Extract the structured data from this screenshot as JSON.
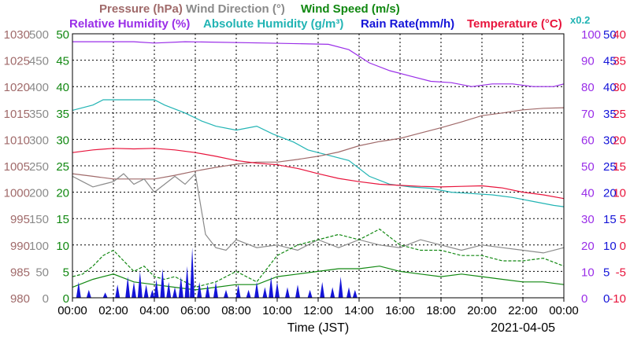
{
  "chart_data": {
    "type": "line",
    "date_label": "2021-04-05",
    "xlabel": "Time (JST)",
    "x_ticks": [
      "00:00",
      "02:00",
      "04:00",
      "06:00",
      "08:00",
      "10:00",
      "12:00",
      "14:00",
      "16:00",
      "18:00",
      "20:00",
      "22:00",
      "00:00"
    ],
    "x_range_hours": [
      0,
      24
    ],
    "grid": true,
    "header": [
      {
        "text": "Pressure (hPa)",
        "color": "#a06a6a"
      },
      {
        "text": "Wind Direction (°)",
        "color": "#8a8a8a"
      },
      {
        "text": "Wind Speed (m/s)",
        "color": "#118811"
      },
      {
        "text": "Relative Humidity (%)",
        "color": "#9a2ee8"
      },
      {
        "text": "Absolute Humidity (g/m³)",
        "color": "#22b4b4"
      },
      {
        "text": "Rain Rate(mm/h)",
        "color": "#1414d8"
      },
      {
        "text": "Temperature (°C)",
        "color": "#e8143c"
      },
      {
        "text": "x0.2",
        "color": "#22b4b4"
      }
    ],
    "axes": {
      "pressure": {
        "color": "#a06a6a",
        "range": [
          980,
          1030
        ],
        "ticks": [
          "1030",
          "1025",
          "1020",
          "1015",
          "1010",
          "1005",
          "1000",
          "995",
          "990",
          "985",
          "980"
        ]
      },
      "wind_direction": {
        "color": "#8a8a8a",
        "range": [
          0,
          500
        ],
        "ticks": [
          "500",
          "450",
          "400",
          "350",
          "300",
          "250",
          "200",
          "150",
          "100",
          "50",
          "0"
        ]
      },
      "wind_speed": {
        "color": "#118811",
        "range": [
          0,
          50
        ],
        "ticks": [
          "50",
          "45",
          "40",
          "35",
          "30",
          "25",
          "20",
          "15",
          "10",
          "5",
          "0"
        ]
      },
      "humidity": {
        "color": "#9a2ee8",
        "range": [
          0,
          100
        ],
        "ticks": [
          "100",
          "90",
          "80",
          "70",
          "60",
          "50",
          "40",
          "30",
          "20",
          "10",
          "0"
        ]
      },
      "rain_rate": {
        "color": "#1414d8",
        "range": [
          0,
          50
        ],
        "ticks": [
          "50",
          "45",
          "40",
          "35",
          "30",
          "25",
          "20",
          "15",
          "10",
          "5",
          "0"
        ]
      },
      "temperature": {
        "color": "#e8143c",
        "range": [
          -10,
          40
        ],
        "ticks": [
          "40",
          "35",
          "30",
          "25",
          "20",
          "15",
          "10",
          "5",
          "0",
          "-5",
          "-10"
        ]
      }
    },
    "series": [
      {
        "key": "relative_humidity",
        "color": "#9a2ee8",
        "axis": "humidity",
        "points": [
          [
            0,
            97
          ],
          [
            3,
            97
          ],
          [
            4,
            96.5
          ],
          [
            5.5,
            97
          ],
          [
            9.5,
            96.5
          ],
          [
            12.5,
            96
          ],
          [
            13.5,
            94
          ],
          [
            14.5,
            89
          ],
          [
            15.5,
            86
          ],
          [
            16.5,
            84
          ],
          [
            17.5,
            82
          ],
          [
            18.5,
            81.5
          ],
          [
            19.5,
            80
          ],
          [
            20.5,
            81
          ],
          [
            21.5,
            81
          ],
          [
            22.5,
            80
          ],
          [
            23.5,
            80
          ],
          [
            24,
            81
          ]
        ]
      },
      {
        "key": "absolute_humidity",
        "color": "#22b4b4",
        "axis": "humidity",
        "points": [
          [
            0,
            71
          ],
          [
            1,
            73
          ],
          [
            1.5,
            75
          ],
          [
            3,
            75
          ],
          [
            4,
            75
          ],
          [
            4.5,
            73
          ],
          [
            5.5,
            70
          ],
          [
            6.3,
            67
          ],
          [
            7,
            65
          ],
          [
            8,
            63.5
          ],
          [
            9,
            65
          ],
          [
            9.8,
            62
          ],
          [
            10.8,
            59
          ],
          [
            11.5,
            56
          ],
          [
            12.5,
            54
          ],
          [
            13.5,
            52
          ],
          [
            14.5,
            46
          ],
          [
            15.5,
            43
          ],
          [
            16.5,
            42
          ],
          [
            17.5,
            41.5
          ],
          [
            18.5,
            40
          ],
          [
            19.5,
            39.5
          ],
          [
            20.5,
            39
          ],
          [
            21.5,
            38
          ],
          [
            22.5,
            36.5
          ],
          [
            23.5,
            35
          ],
          [
            24,
            34.5
          ]
        ]
      },
      {
        "key": "pressure",
        "color": "#a06a6a",
        "axis": "pressure",
        "points": [
          [
            0,
            1003.5
          ],
          [
            1,
            1003
          ],
          [
            2,
            1002.5
          ],
          [
            3,
            1002.5
          ],
          [
            4,
            1002.5
          ],
          [
            5,
            1003.2
          ],
          [
            6,
            1004
          ],
          [
            7,
            1004.7
          ],
          [
            8,
            1005.3
          ],
          [
            9,
            1005.7
          ],
          [
            10,
            1005.7
          ],
          [
            11,
            1006.2
          ],
          [
            12,
            1006.8
          ],
          [
            13,
            1007.6
          ],
          [
            14,
            1008.8
          ],
          [
            15,
            1009.6
          ],
          [
            16,
            1010.2
          ],
          [
            17,
            1011.2
          ],
          [
            18,
            1012.2
          ],
          [
            19,
            1013.3
          ],
          [
            20,
            1014.5
          ],
          [
            21,
            1015
          ],
          [
            22,
            1015.6
          ],
          [
            23,
            1015.9
          ],
          [
            24,
            1016
          ]
        ]
      },
      {
        "key": "temperature",
        "color": "#e8143c",
        "axis": "temperature",
        "points": [
          [
            0,
            17.5
          ],
          [
            1,
            18
          ],
          [
            2,
            18.3
          ],
          [
            3,
            18.2
          ],
          [
            4,
            18.3
          ],
          [
            5,
            18
          ],
          [
            6,
            17.5
          ],
          [
            7,
            16.8
          ],
          [
            8,
            16
          ],
          [
            9,
            15.5
          ],
          [
            10,
            15.2
          ],
          [
            11,
            14.5
          ],
          [
            12,
            13.5
          ],
          [
            13,
            12.6
          ],
          [
            14,
            12
          ],
          [
            15,
            11.5
          ],
          [
            16,
            11.3
          ],
          [
            17,
            11.1
          ],
          [
            18,
            11
          ],
          [
            19,
            11.1
          ],
          [
            20,
            11.2
          ],
          [
            21,
            10.8
          ],
          [
            22,
            10
          ],
          [
            23,
            9.5
          ],
          [
            24,
            8.8
          ]
        ]
      },
      {
        "key": "wind_direction",
        "color": "#8a8a8a",
        "axis": "wind_direction",
        "points": [
          [
            0,
            230
          ],
          [
            0.5,
            220
          ],
          [
            1,
            210
          ],
          [
            1.5,
            215
          ],
          [
            2,
            220
          ],
          [
            2.5,
            235
          ],
          [
            3,
            215
          ],
          [
            3.5,
            225
          ],
          [
            4,
            200
          ],
          [
            4.5,
            215
          ],
          [
            5,
            230
          ],
          [
            5.5,
            215
          ],
          [
            6,
            235
          ],
          [
            6.5,
            120
          ],
          [
            7,
            95
          ],
          [
            7.5,
            90
          ],
          [
            8,
            110
          ],
          [
            9,
            95
          ],
          [
            10,
            100
          ],
          [
            11,
            90
          ],
          [
            12,
            110
          ],
          [
            13,
            95
          ],
          [
            14,
            110
          ],
          [
            15,
            100
          ],
          [
            16,
            95
          ],
          [
            17,
            110
          ],
          [
            18,
            100
          ],
          [
            19,
            90
          ],
          [
            20,
            100
          ],
          [
            21,
            95
          ],
          [
            22,
            90
          ],
          [
            23,
            85
          ],
          [
            24,
            95
          ]
        ]
      },
      {
        "key": "wind_speed_max",
        "color": "#118811",
        "axis": "wind_speed",
        "dashed": true,
        "points": [
          [
            0,
            4
          ],
          [
            0.5,
            4.5
          ],
          [
            1,
            6
          ],
          [
            1.5,
            8
          ],
          [
            2,
            9
          ],
          [
            2.5,
            7
          ],
          [
            3,
            5
          ],
          [
            3.5,
            6
          ],
          [
            4,
            4
          ],
          [
            4.5,
            3.5
          ],
          [
            5,
            4
          ],
          [
            5.5,
            3
          ],
          [
            6,
            2
          ],
          [
            7,
            3
          ],
          [
            8,
            5
          ],
          [
            9,
            3
          ],
          [
            10,
            8
          ],
          [
            11,
            10
          ],
          [
            12,
            11
          ],
          [
            13,
            12
          ],
          [
            14,
            11
          ],
          [
            15,
            13
          ],
          [
            16,
            10
          ],
          [
            17,
            9
          ],
          [
            18,
            9
          ],
          [
            19,
            8
          ],
          [
            20,
            8
          ],
          [
            21,
            7
          ],
          [
            22,
            7
          ],
          [
            23,
            7.5
          ],
          [
            24,
            6
          ]
        ]
      },
      {
        "key": "wind_speed_avg",
        "color": "#118811",
        "axis": "wind_speed",
        "points": [
          [
            0,
            2
          ],
          [
            1,
            3.5
          ],
          [
            2,
            4.5
          ],
          [
            3,
            3
          ],
          [
            4,
            2.5
          ],
          [
            5,
            2
          ],
          [
            6,
            1.5
          ],
          [
            7,
            2
          ],
          [
            8,
            2.5
          ],
          [
            9,
            2.5
          ],
          [
            10,
            4
          ],
          [
            11,
            4.5
          ],
          [
            12,
            5
          ],
          [
            13,
            5.5
          ],
          [
            14,
            5.5
          ],
          [
            15,
            6
          ],
          [
            16,
            5
          ],
          [
            17,
            4.5
          ],
          [
            18,
            4
          ],
          [
            19,
            4.5
          ],
          [
            20,
            4
          ],
          [
            21,
            3.5
          ],
          [
            22,
            3
          ],
          [
            23,
            3
          ],
          [
            24,
            2.5
          ]
        ]
      },
      {
        "key": "rain_rate",
        "color": "#1414d8",
        "axis": "rain_rate",
        "filled": true,
        "points": [
          [
            0.3,
            3
          ],
          [
            0.8,
            1.5
          ],
          [
            1.6,
            1
          ],
          [
            2.2,
            2.5
          ],
          [
            2.7,
            4
          ],
          [
            3.0,
            3
          ],
          [
            3.3,
            5
          ],
          [
            3.6,
            2.5
          ],
          [
            3.9,
            1.5
          ],
          [
            4.1,
            3.5
          ],
          [
            4.4,
            5.5
          ],
          [
            4.7,
            3
          ],
          [
            5.0,
            2
          ],
          [
            5.3,
            4
          ],
          [
            5.6,
            6
          ],
          [
            5.85,
            9.5
          ],
          [
            6.2,
            3
          ],
          [
            6.6,
            2.5
          ],
          [
            7.0,
            3
          ],
          [
            7.5,
            1.5
          ],
          [
            8.1,
            2.5
          ],
          [
            8.6,
            1.5
          ],
          [
            9.0,
            3
          ],
          [
            9.4,
            2
          ],
          [
            9.7,
            4
          ],
          [
            10.0,
            3
          ],
          [
            10.5,
            2
          ],
          [
            11.0,
            2.5
          ],
          [
            11.6,
            1.5
          ],
          [
            12.2,
            3
          ],
          [
            12.7,
            2
          ],
          [
            13.1,
            4
          ],
          [
            13.5,
            2
          ],
          [
            13.8,
            1.5
          ]
        ]
      }
    ]
  }
}
